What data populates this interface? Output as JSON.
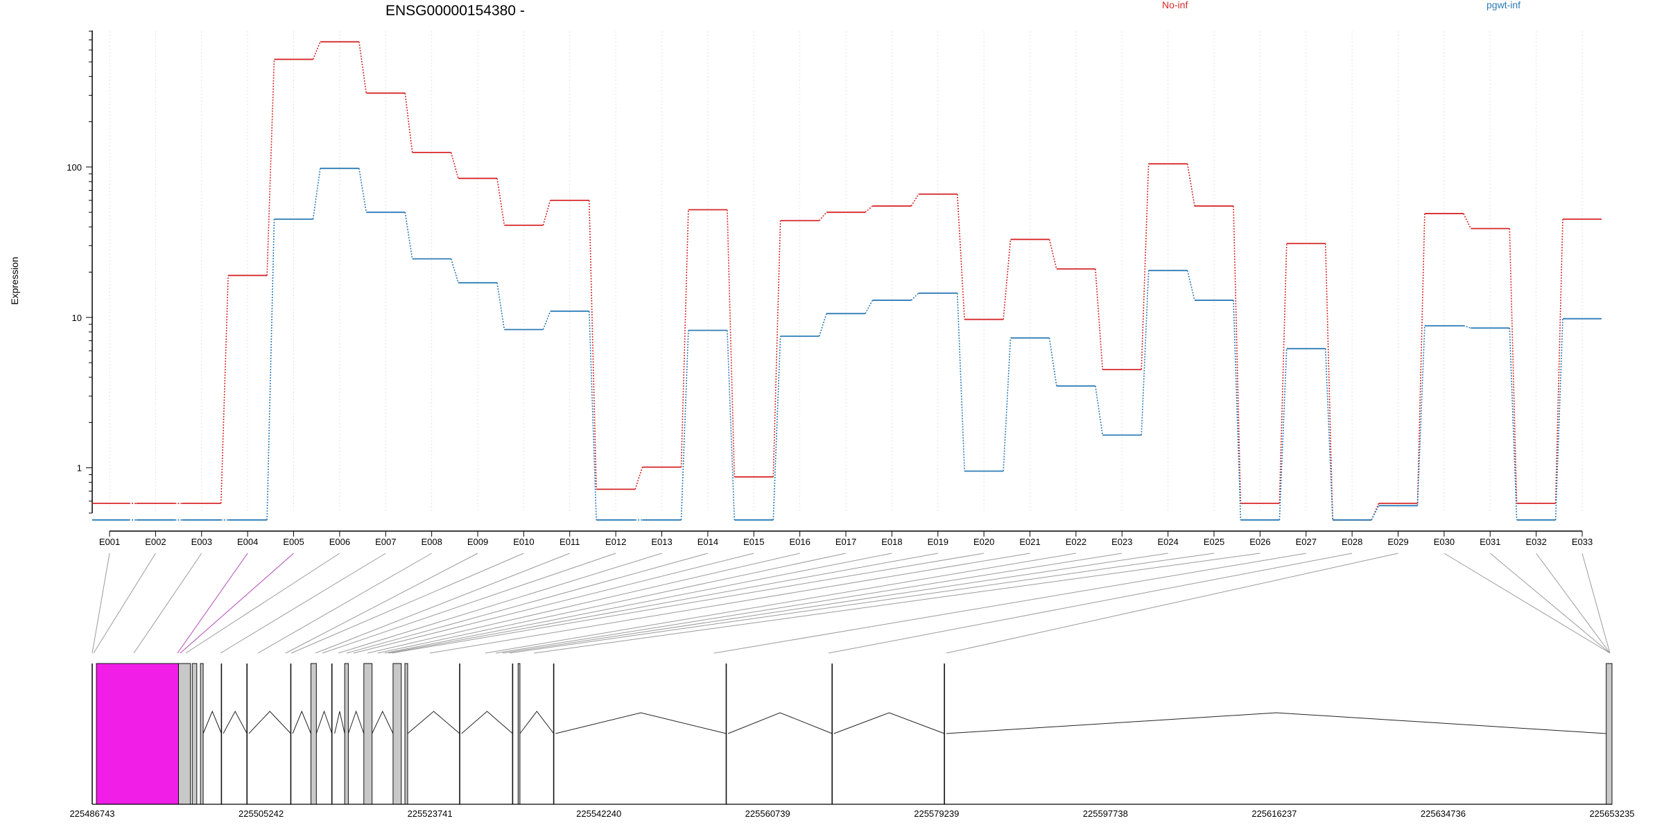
{
  "chart_data": {
    "type": "line",
    "title": "ENSG00000154380 -",
    "ylabel": "Expression",
    "yscale": "log",
    "ylim": [
      0.5,
      800
    ],
    "yticks": [
      1,
      10,
      100
    ],
    "ytick_labels": [
      "1",
      "10",
      "100"
    ],
    "grid": "vertical dotted lines at each exon",
    "legend_placement": "top, horizontal",
    "categories": [
      "E001",
      "E002",
      "E003",
      "E004",
      "E005",
      "E006",
      "E007",
      "E008",
      "E009",
      "E010",
      "E011",
      "E012",
      "E013",
      "E014",
      "E015",
      "E016",
      "E017",
      "E018",
      "E019",
      "E020",
      "E021",
      "E022",
      "E023",
      "E024",
      "E025",
      "E026",
      "E027",
      "E028",
      "E029",
      "E030",
      "E031",
      "E032",
      "E033"
    ],
    "series": [
      {
        "name": "No-inf",
        "color": "#d62728",
        "values": [
          0.58,
          0.58,
          0.58,
          19,
          520,
          680,
          310,
          125,
          84,
          41,
          60,
          0.72,
          1.01,
          52,
          0.87,
          44,
          50,
          55,
          66,
          9.7,
          33,
          21,
          4.5,
          105,
          55,
          0.58,
          31,
          0.45,
          0.58,
          49,
          39,
          0.58,
          45
        ]
      },
      {
        "name": "pgwt-inf",
        "color": "#2c7bb6",
        "values": [
          0.45,
          0.45,
          0.45,
          0.45,
          45,
          98,
          50,
          24.5,
          17,
          8.3,
          11,
          0.45,
          0.45,
          8.2,
          0.45,
          7.5,
          10.6,
          13,
          14.5,
          0.95,
          7.3,
          3.5,
          1.65,
          20.5,
          13,
          0.45,
          6.2,
          0.45,
          0.56,
          8.8,
          8.5,
          0.45,
          9.8
        ]
      }
    ],
    "gene_model": {
      "genomic_ticks": [
        "225486743",
        "225505242",
        "225523741",
        "225542240",
        "225560739",
        "225579239",
        "225597738",
        "225616237",
        "225634736",
        "225653235"
      ],
      "range": [
        225486743,
        225653235
      ],
      "highlight_color": "#f01ee6",
      "exon_color": "#c8c8c8",
      "highlight_exons": [
        "E004",
        "E005"
      ]
    }
  }
}
